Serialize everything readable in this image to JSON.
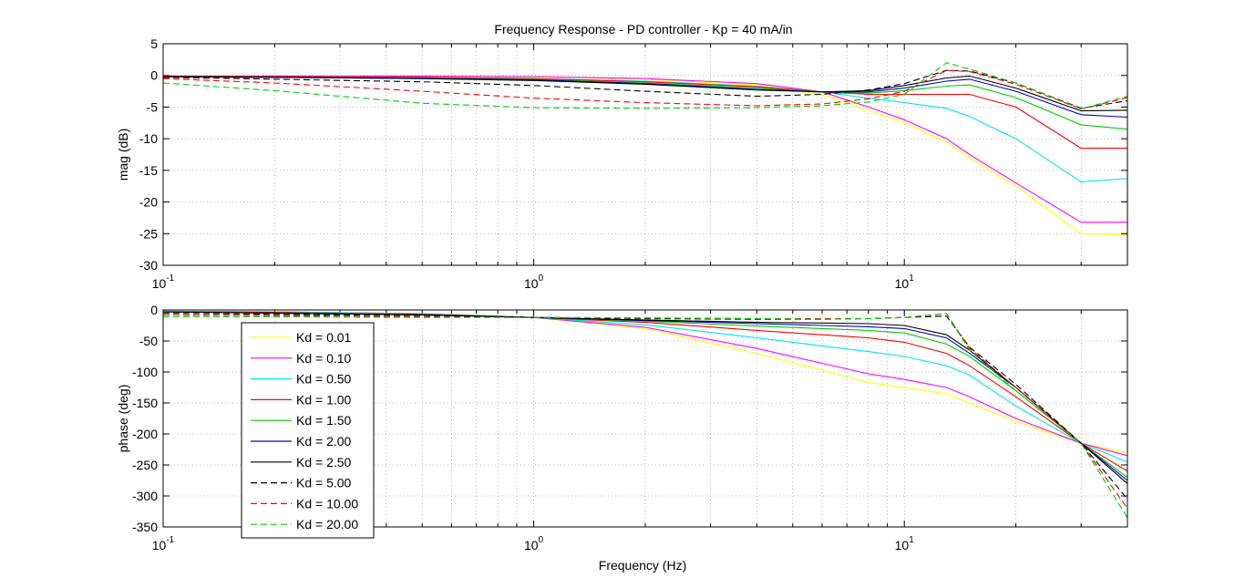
{
  "chart_data": {
    "title": "Frequency Response - PD controller - Kp = 40 mA/in",
    "type": "line",
    "xlabel": "Frequency (Hz)",
    "x_scale": "log",
    "x_ticks": [
      0.1,
      1,
      10
    ],
    "x_tick_labels": [
      {
        "base": "10",
        "exp": "-1"
      },
      {
        "base": "10",
        "exp": "0"
      },
      {
        "base": "10",
        "exp": "1"
      }
    ],
    "xlim": [
      0.1,
      40
    ],
    "x": [
      0.1,
      0.2,
      0.5,
      1,
      2,
      4,
      6,
      8,
      10,
      13,
      15,
      20,
      30,
      40
    ],
    "grid": true,
    "legend_location": "lower-left of phase plot",
    "subplots": [
      {
        "ylabel": "mag (dB)",
        "ylim": [
          -30,
          5
        ],
        "yticks": [
          5,
          0,
          -5,
          -10,
          -15,
          -20,
          -25,
          -30
        ],
        "series": [
          {
            "name": "Kd = 0.01",
            "color": "#ffff00",
            "dash": "solid",
            "values": [
              -0.1,
              -0.1,
              -0.1,
              -0.2,
              -0.6,
              -1.5,
              -3.0,
              -5.5,
              -7.5,
              -10.5,
              -13,
              -17.5,
              -25,
              -25.2
            ]
          },
          {
            "name": "Kd = 0.10",
            "color": "#ff00ff",
            "dash": "solid",
            "values": [
              -0.1,
              -0.1,
              -0.1,
              -0.2,
              -0.5,
              -1.3,
              -2.6,
              -5.0,
              -7.0,
              -10.0,
              -12.5,
              -17.0,
              -23.2,
              -23.2
            ]
          },
          {
            "name": "Kd = 0.50",
            "color": "#00e5ee",
            "dash": "solid",
            "values": [
              -0.1,
              -0.2,
              -0.3,
              -0.5,
              -0.9,
              -1.7,
              -2.6,
              -3.6,
              -4.3,
              -5.2,
              -6.5,
              -10.0,
              -16.8,
              -16.3
            ]
          },
          {
            "name": "Kd = 1.00",
            "color": "#ff0000",
            "dash": "solid",
            "values": [
              -0.1,
              -0.2,
              -0.3,
              -0.5,
              -1.0,
              -1.8,
              -2.6,
              -3.0,
              -3.0,
              -3.0,
              -3.0,
              -5.0,
              -11.5,
              -11.5
            ]
          },
          {
            "name": "Kd = 1.50",
            "color": "#00cc00",
            "dash": "solid",
            "values": [
              -0.2,
              -0.3,
              -0.4,
              -0.6,
              -1.2,
              -2.0,
              -2.6,
              -2.8,
              -2.4,
              -1.7,
              -1.5,
              -3.5,
              -7.8,
              -8.5
            ]
          },
          {
            "name": "Kd = 2.00",
            "color": "#0000cc",
            "dash": "solid",
            "values": [
              -0.2,
              -0.3,
              -0.5,
              -0.7,
              -1.3,
              -2.2,
              -2.6,
              -2.6,
              -2.0,
              -0.9,
              -0.6,
              -2.5,
              -6.2,
              -6.6
            ]
          },
          {
            "name": "Kd = 2.50",
            "color": "#000000",
            "dash": "solid",
            "values": [
              -0.2,
              -0.3,
              -0.5,
              -0.8,
              -1.4,
              -2.3,
              -2.6,
              -2.4,
              -1.6,
              -0.4,
              -0.1,
              -2.0,
              -5.6,
              -5.5
            ]
          },
          {
            "name": "Kd = 5.00",
            "color": "#000000",
            "dash": "dashed",
            "values": [
              -0.3,
              -0.6,
              -1.0,
              -1.6,
              -2.5,
              -3.3,
              -3.0,
              -2.3,
              -1.3,
              0.8,
              0.7,
              -1.2,
              -5.2,
              -4.0
            ]
          },
          {
            "name": "Kd = 10.00",
            "color": "#ff0000",
            "dash": "dashed",
            "values": [
              -0.5,
              -1.2,
              -2.5,
              -3.6,
              -4.3,
              -4.8,
              -4.5,
              -3.7,
              -2.5,
              0.8,
              0.6,
              -1.4,
              -5.3,
              -3.5
            ]
          },
          {
            "name": "Kd = 20.00",
            "color": "#00cc00",
            "dash": "dashed",
            "values": [
              -1.2,
              -2.4,
              -4.4,
              -5.1,
              -5.2,
              -5.1,
              -4.8,
              -4.2,
              -3.0,
              2.0,
              1.0,
              -1.2,
              -5.3,
              -3.3
            ]
          }
        ]
      },
      {
        "ylabel": "phase (deg)",
        "ylim": [
          -350,
          0
        ],
        "yticks": [
          0,
          -50,
          -100,
          -150,
          -200,
          -250,
          -300,
          -350
        ],
        "series": [
          {
            "name": "Kd = 0.01",
            "color": "#ffff00",
            "dash": "solid",
            "values": [
              -2,
              -3,
              -6,
              -12,
              -30,
              -70,
              -97,
              -117,
              -125,
              -135,
              -150,
              -180,
              -215,
              -230
            ]
          },
          {
            "name": "Kd = 0.10",
            "color": "#ff00ff",
            "dash": "solid",
            "values": [
              -2,
              -3,
              -6,
              -12,
              -28,
              -62,
              -86,
              -103,
              -112,
              -125,
              -140,
              -175,
              -215,
              -235
            ]
          },
          {
            "name": "Kd = 0.50",
            "color": "#00e5ee",
            "dash": "solid",
            "values": [
              -2,
              -3,
              -6,
              -12,
              -24,
              -45,
              -58,
              -67,
              -75,
              -90,
              -105,
              -155,
              -215,
              -245
            ]
          },
          {
            "name": "Kd = 1.00",
            "color": "#ff0000",
            "dash": "solid",
            "values": [
              -3,
              -4,
              -7,
              -12,
              -20,
              -33,
              -40,
              -45,
              -52,
              -70,
              -90,
              -140,
              -215,
              -260
            ]
          },
          {
            "name": "Kd = 1.50",
            "color": "#00cc00",
            "dash": "solid",
            "values": [
              -3,
              -5,
              -8,
              -12,
              -18,
              -26,
              -30,
              -33,
              -37,
              -55,
              -75,
              -130,
              -215,
              -270
            ]
          },
          {
            "name": "Kd = 2.00",
            "color": "#0000cc",
            "dash": "solid",
            "values": [
              -3,
              -5,
              -8,
              -12,
              -17,
              -22,
              -25,
              -27,
              -30,
              -45,
              -70,
              -125,
              -215,
              -275
            ]
          },
          {
            "name": "Kd = 2.50",
            "color": "#000000",
            "dash": "solid",
            "values": [
              -3,
              -5,
              -8,
              -12,
              -16,
              -20,
              -21,
              -22,
              -25,
              -40,
              -65,
              -125,
              -215,
              -280
            ]
          },
          {
            "name": "Kd = 5.00",
            "color": "#000000",
            "dash": "dashed",
            "values": [
              -5,
              -7,
              -9,
              -12,
              -14,
              -15,
              -15,
              -14,
              -12,
              -10,
              -60,
              -120,
              -215,
              -305
            ]
          },
          {
            "name": "Kd = 10.00",
            "color": "#ff0000",
            "dash": "dashed",
            "values": [
              -8,
              -9,
              -11,
              -12,
              -13,
              -14,
              -14,
              -14,
              -12,
              -6,
              -62,
              -125,
              -215,
              -320
            ]
          },
          {
            "name": "Kd = 20.00",
            "color": "#00cc00",
            "dash": "dashed",
            "values": [
              -11,
              -11,
              -12,
              -12,
              -13,
              -14,
              -15,
              -14,
              -12,
              -6,
              -65,
              -130,
              -215,
              -335
            ]
          }
        ]
      }
    ]
  }
}
